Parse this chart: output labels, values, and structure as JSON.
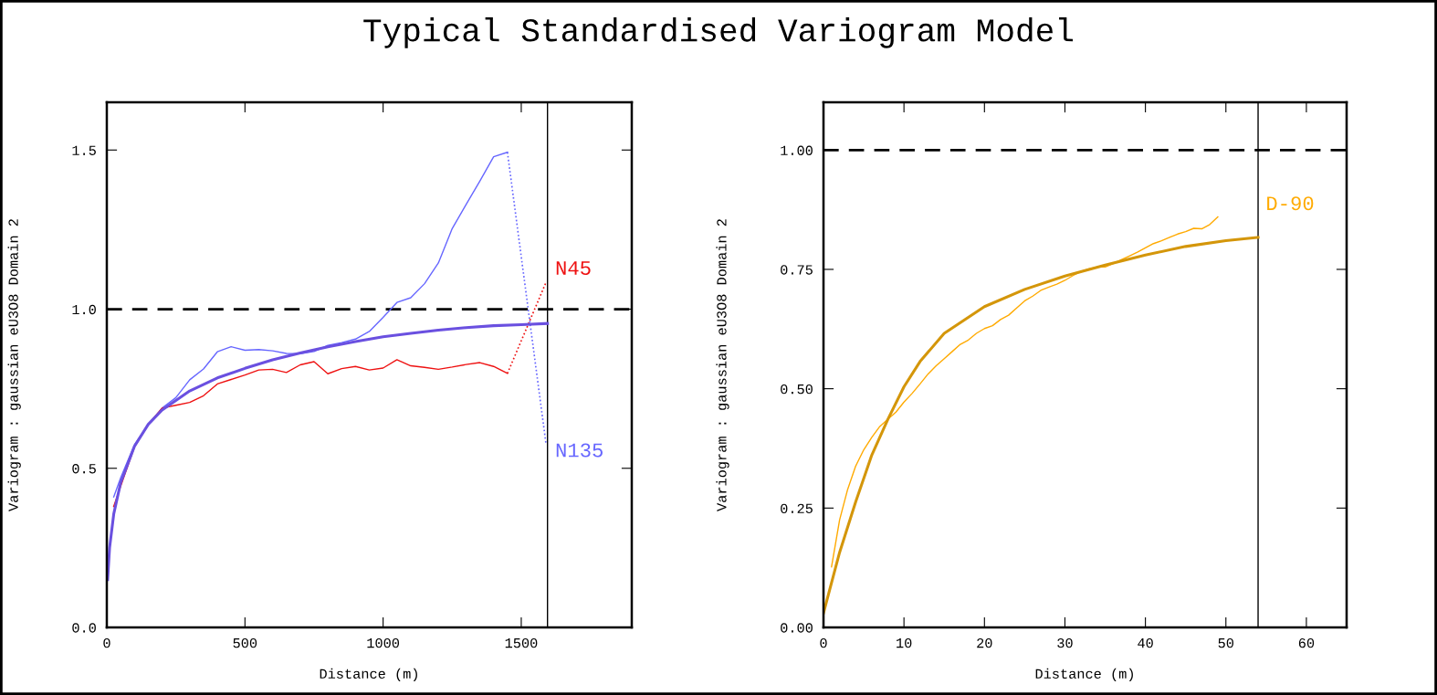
{
  "chart_data": [
    {
      "type": "line",
      "title": "Typical Standardised Variogram Model",
      "xlabel": "Distance (m)",
      "ylabel": "Variogram : gaussian eU3O8 Domain 2",
      "xlim": [
        0,
        1900
      ],
      "xticks": [
        0,
        500,
        1000,
        1500
      ],
      "ylim": [
        0,
        1.65
      ],
      "yticks": [
        {
          "value": 0,
          "label": "0.0"
        },
        {
          "value": 0.5,
          "label": "0.5"
        },
        {
          "value": 1,
          "label": "1.0"
        },
        {
          "value": 1.5,
          "label": "1.5"
        }
      ],
      "grid": false,
      "legend": false,
      "marker": "none",
      "ref_lines": [
        {
          "axis": "y",
          "value": 1,
          "line_style": "dashed",
          "color": "#000000"
        },
        {
          "axis": "x",
          "value": 1595,
          "line_style": "solid",
          "color": "#000000"
        }
      ],
      "series": [
        {
          "name": "N135",
          "color": "#6666ff",
          "line_style": "solid",
          "x": [
            25,
            50,
            100,
            150,
            200,
            250,
            300,
            350,
            400,
            450,
            500,
            550,
            600,
            650,
            700,
            750,
            800,
            850,
            900,
            950,
            1000,
            1050,
            1100,
            1150,
            1200,
            1250,
            1300,
            1350,
            1400,
            1450
          ],
          "values": [
            0.41,
            0.47,
            0.574,
            0.638,
            0.689,
            0.722,
            0.778,
            0.812,
            0.866,
            0.882,
            0.871,
            0.873,
            0.869,
            0.861,
            0.86,
            0.867,
            0.886,
            0.895,
            0.906,
            0.93,
            0.974,
            1.021,
            1.036,
            1.08,
            1.145,
            1.253,
            1.328,
            1.402,
            1.479,
            1.493
          ]
        },
        {
          "color": "#6666ff",
          "line_style": "dotted",
          "x": [
            1450,
            1590
          ],
          "values": [
            1.493,
            0.574
          ]
        },
        {
          "name": "N45",
          "color": "#ee1111",
          "line_style": "solid",
          "x": [
            25,
            50,
            100,
            150,
            200,
            250,
            300,
            350,
            400,
            450,
            500,
            550,
            600,
            650,
            700,
            750,
            800,
            850,
            900,
            950,
            1000,
            1050,
            1100,
            1150,
            1200,
            1250,
            1300,
            1350,
            1400,
            1450
          ],
          "values": [
            0.38,
            0.443,
            0.567,
            0.638,
            0.689,
            0.698,
            0.707,
            0.728,
            0.765,
            0.779,
            0.793,
            0.809,
            0.811,
            0.801,
            0.825,
            0.835,
            0.797,
            0.813,
            0.82,
            0.809,
            0.815,
            0.841,
            0.822,
            0.817,
            0.811,
            0.818,
            0.826,
            0.832,
            0.82,
            0.798
          ]
        },
        {
          "color": "#ee1111",
          "line_style": "dotted",
          "x": [
            1450,
            1591
          ],
          "values": [
            0.798,
            1.087
          ]
        },
        {
          "color": "#6a50e0",
          "line_style": "solid",
          "x": [
            3,
            10,
            25,
            50,
            100,
            150,
            200,
            300,
            400,
            500,
            600,
            700,
            800,
            900,
            1000,
            1100,
            1200,
            1300,
            1400,
            1500,
            1595
          ],
          "values": [
            0.15,
            0.25,
            0.356,
            0.454,
            0.569,
            0.638,
            0.683,
            0.743,
            0.784,
            0.814,
            0.841,
            0.862,
            0.882,
            0.898,
            0.913,
            0.924,
            0.934,
            0.942,
            0.948,
            0.951,
            0.955
          ]
        }
      ]
    },
    {
      "type": "line",
      "xlabel": "Distance (m)",
      "ylabel": "Variogram : gaussian eU3O8 Domain 2",
      "xlim": [
        0,
        65
      ],
      "xticks": [
        0,
        10,
        20,
        30,
        40,
        50,
        60
      ],
      "ylim": [
        0,
        1.1
      ],
      "yticks": [
        {
          "value": 0,
          "label": "0.00"
        },
        {
          "value": 0.25,
          "label": "0.25"
        },
        {
          "value": 0.5,
          "label": "0.50"
        },
        {
          "value": 0.75,
          "label": "0.75"
        },
        {
          "value": 1,
          "label": "1.00"
        }
      ],
      "grid": false,
      "legend": false,
      "marker": "none",
      "ref_lines": [
        {
          "axis": "y",
          "value": 1,
          "line_style": "dashed",
          "color": "#000000"
        },
        {
          "axis": "x",
          "value": 54,
          "line_style": "solid",
          "color": "#000000"
        }
      ],
      "series": [
        {
          "name": "D-90",
          "color": "#ffaa00",
          "line_style": "solid",
          "x": [
            1,
            2,
            3,
            4,
            5,
            6,
            7,
            8,
            9,
            10,
            11,
            12,
            13,
            14,
            15,
            16,
            17,
            18,
            19,
            20,
            21,
            22,
            23,
            24,
            25,
            26,
            27,
            28,
            29,
            30,
            31,
            32,
            33,
            34,
            35,
            36,
            37,
            38,
            39,
            40,
            41,
            42,
            43,
            44,
            45,
            46,
            47,
            48,
            49
          ],
          "values": [
            0.127,
            0.225,
            0.289,
            0.338,
            0.372,
            0.398,
            0.421,
            0.436,
            0.451,
            0.472,
            0.49,
            0.51,
            0.531,
            0.548,
            0.563,
            0.578,
            0.593,
            0.602,
            0.616,
            0.626,
            0.632,
            0.645,
            0.654,
            0.669,
            0.684,
            0.694,
            0.706,
            0.713,
            0.719,
            0.727,
            0.737,
            0.746,
            0.751,
            0.755,
            0.755,
            0.762,
            0.77,
            0.778,
            0.786,
            0.795,
            0.804,
            0.81,
            0.817,
            0.824,
            0.829,
            0.836,
            0.835,
            0.844,
            0.86
          ]
        },
        {
          "color": "#d4960a",
          "line_style": "solid",
          "x": [
            0,
            2,
            4,
            6,
            8,
            10,
            12,
            15,
            20,
            25,
            30,
            35,
            40,
            45,
            50,
            54
          ],
          "values": [
            0.03,
            0.157,
            0.263,
            0.361,
            0.436,
            0.504,
            0.557,
            0.616,
            0.672,
            0.708,
            0.736,
            0.759,
            0.78,
            0.798,
            0.81,
            0.817
          ]
        }
      ]
    }
  ]
}
